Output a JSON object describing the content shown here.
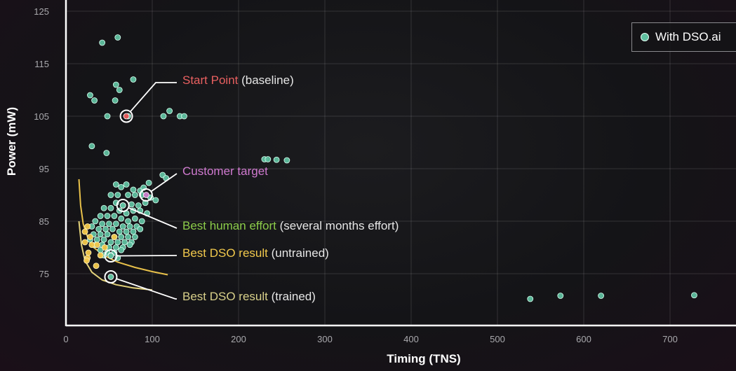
{
  "chart_data": {
    "type": "scatter",
    "xlabel": "Timing (TNS)",
    "ylabel": "Power (mW)",
    "xlim": [
      0,
      780
    ],
    "ylim": [
      66,
      126
    ],
    "xticks": [
      0,
      100,
      200,
      300,
      400,
      500,
      600,
      700
    ],
    "yticks": [
      75,
      85,
      95,
      105,
      115,
      125
    ],
    "grid": true,
    "legend": {
      "position": "top-right",
      "entries": [
        "With DSO.ai"
      ]
    },
    "series": [
      {
        "name": "With DSO.ai",
        "color": "#5fbf9f",
        "points": [
          [
            42,
            119
          ],
          [
            60,
            120
          ],
          [
            78,
            112
          ],
          [
            58,
            111
          ],
          [
            62,
            110
          ],
          [
            28,
            109
          ],
          [
            33,
            108
          ],
          [
            57,
            108
          ],
          [
            48,
            105
          ],
          [
            72,
            105
          ],
          [
            120,
            106
          ],
          [
            113,
            105
          ],
          [
            132,
            105
          ],
          [
            137,
            105
          ],
          [
            30,
            99.3
          ],
          [
            47,
            98
          ],
          [
            230,
            96.8
          ],
          [
            234,
            96.8
          ],
          [
            244,
            96.7
          ],
          [
            256,
            96.6
          ],
          [
            112,
            93.8
          ],
          [
            116,
            93.2
          ],
          [
            96,
            92.3
          ],
          [
            58,
            92
          ],
          [
            70,
            92
          ],
          [
            64,
            91.5
          ],
          [
            78,
            91
          ],
          [
            86,
            90.8
          ],
          [
            90,
            91.4
          ],
          [
            52,
            90
          ],
          [
            60,
            90
          ],
          [
            72,
            90
          ],
          [
            80,
            90
          ],
          [
            88,
            90
          ],
          [
            98,
            89.5
          ],
          [
            104,
            89
          ],
          [
            92,
            88.5
          ],
          [
            84,
            88
          ],
          [
            76,
            88.2
          ],
          [
            66,
            88
          ],
          [
            58,
            88.5
          ],
          [
            52,
            87.5
          ],
          [
            44,
            87.5
          ],
          [
            62,
            87
          ],
          [
            70,
            86.5
          ],
          [
            78,
            87
          ],
          [
            86,
            87
          ],
          [
            94,
            86.5
          ],
          [
            56,
            86
          ],
          [
            48,
            86
          ],
          [
            40,
            86
          ],
          [
            64,
            85.5
          ],
          [
            72,
            85
          ],
          [
            80,
            85.5
          ],
          [
            88,
            85
          ],
          [
            34,
            85
          ],
          [
            42,
            84.5
          ],
          [
            50,
            84.5
          ],
          [
            58,
            84.5
          ],
          [
            66,
            84
          ],
          [
            74,
            84
          ],
          [
            82,
            84
          ],
          [
            30,
            84
          ],
          [
            38,
            83.5
          ],
          [
            46,
            83.5
          ],
          [
            54,
            83.5
          ],
          [
            62,
            83
          ],
          [
            70,
            83
          ],
          [
            78,
            83
          ],
          [
            86,
            83.5
          ],
          [
            32,
            82.5
          ],
          [
            40,
            82.5
          ],
          [
            48,
            82.5
          ],
          [
            56,
            82
          ],
          [
            64,
            82
          ],
          [
            72,
            82
          ],
          [
            80,
            82
          ],
          [
            28,
            81.5
          ],
          [
            36,
            81.5
          ],
          [
            44,
            81.5
          ],
          [
            52,
            81
          ],
          [
            60,
            81
          ],
          [
            68,
            81
          ],
          [
            76,
            81
          ],
          [
            34,
            80.5
          ],
          [
            42,
            80.5
          ],
          [
            50,
            80
          ],
          [
            58,
            80
          ],
          [
            66,
            80
          ],
          [
            74,
            80.5
          ],
          [
            40,
            79.5
          ],
          [
            48,
            79
          ],
          [
            56,
            79
          ],
          [
            64,
            79.5
          ],
          [
            44,
            78.5
          ],
          [
            52,
            78.5
          ],
          [
            60,
            78
          ],
          [
            538,
            70.2
          ],
          [
            573,
            70.8
          ],
          [
            620,
            70.8
          ],
          [
            728,
            70.9
          ]
        ]
      },
      {
        "name": "",
        "color": "#f3c84a",
        "points": [
          [
            22,
            83
          ],
          [
            25,
            84
          ],
          [
            28,
            82
          ],
          [
            22,
            81
          ],
          [
            30,
            80.5
          ],
          [
            26,
            79
          ],
          [
            25,
            78
          ],
          [
            36,
            80.5
          ],
          [
            45,
            80
          ],
          [
            40,
            78.5
          ],
          [
            35,
            76.5
          ],
          [
            56,
            82
          ],
          [
            24,
            77.5
          ]
        ]
      }
    ],
    "curves": [
      {
        "color": "#e8c14a",
        "points": [
          [
            15,
            93
          ],
          [
            17,
            88
          ],
          [
            20,
            84.5
          ],
          [
            25,
            82
          ],
          [
            32,
            80
          ],
          [
            45,
            78.4
          ],
          [
            60,
            77.2
          ],
          [
            80,
            76.2
          ],
          [
            100,
            75.4
          ],
          [
            118,
            74.8
          ]
        ]
      },
      {
        "color": "#e3d27a",
        "points": [
          [
            15,
            85
          ],
          [
            18,
            80.5
          ],
          [
            22,
            77.5
          ],
          [
            30,
            75.3
          ],
          [
            42,
            73.8
          ],
          [
            58,
            72.9
          ],
          [
            78,
            72.3
          ],
          [
            100,
            71.9
          ]
        ]
      }
    ],
    "annotations": [
      {
        "x": 70,
        "y": 105,
        "color": "#e05a5a",
        "ring": "#ffffff",
        "label_colored": "Start Point",
        "label_rest": "(baseline)",
        "label_color": "#e86060"
      },
      {
        "x": 93,
        "y": 90,
        "color": "#c77dc7",
        "ring": "#ffffff",
        "label_colored": "Customer target",
        "label_rest": "",
        "label_color": "#d07ad0"
      },
      {
        "x": 66,
        "y": 88,
        "color": "#5fbf9f",
        "ring": "#ffffff",
        "label_colored": "Best human effort",
        "label_rest": "(several months effort)",
        "label_color": "#8ccc4a"
      },
      {
        "x": 52,
        "y": 78.4,
        "color": "#5fbf9f",
        "ring": "#ffffff",
        "label_colored": "Best DSO result",
        "label_rest": "(untrained)",
        "label_color": "#f2c94c"
      },
      {
        "x": 52,
        "y": 74.4,
        "color": "#5fbf9f",
        "ring": "#ffffff",
        "label_colored": "Best DSO result",
        "label_rest": "(trained)",
        "label_color": "#d8d08a"
      }
    ]
  }
}
